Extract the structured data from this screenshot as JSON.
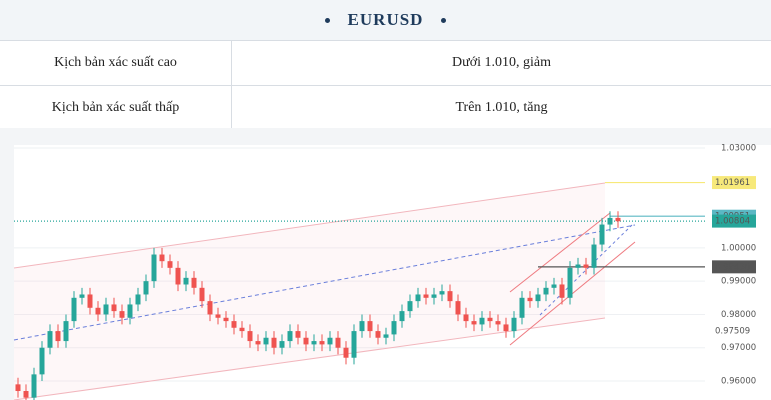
{
  "header": {
    "title": "EURUSD"
  },
  "table": {
    "rows": [
      [
        "Kịch bản xác suất cao",
        "Dưới 1.010, giảm"
      ],
      [
        "Kịch bản xác suất thấp",
        "Trên 1.010, tăng"
      ]
    ]
  },
  "chart_data": {
    "type": "candlestick",
    "up_color": "#26a69a",
    "down_color": "#ef5350",
    "open": [
      0.959,
      0.957,
      0.955,
      0.962,
      0.97,
      0.975,
      0.972,
      0.978,
      0.985,
      0.986,
      0.982,
      0.98,
      0.983,
      0.981,
      0.979,
      0.983,
      0.986,
      0.99,
      0.998,
      0.996,
      0.994,
      0.989,
      0.991,
      0.988,
      0.984,
      0.98,
      0.979,
      0.978,
      0.976,
      0.975,
      0.972,
      0.971,
      0.973,
      0.97,
      0.972,
      0.975,
      0.973,
      0.971,
      0.972,
      0.971,
      0.973,
      0.97,
      0.967,
      0.975,
      0.978,
      0.975,
      0.973,
      0.974,
      0.978,
      0.981,
      0.984,
      0.986,
      0.985,
      0.986,
      0.987,
      0.984,
      0.98,
      0.978,
      0.977,
      0.979,
      0.978,
      0.977,
      0.975,
      0.979,
      0.985,
      0.984,
      0.986,
      0.988,
      0.989,
      0.985,
      0.994,
      0.995,
      0.994,
      1.001,
      1.007,
      1.009
    ],
    "high": [
      0.961,
      0.959,
      0.964,
      0.972,
      0.977,
      0.977,
      0.98,
      0.987,
      0.988,
      0.988,
      0.984,
      0.985,
      0.985,
      0.983,
      0.985,
      0.988,
      0.992,
      1.0,
      1.0,
      0.998,
      0.996,
      0.993,
      0.993,
      0.99,
      0.986,
      0.982,
      0.981,
      0.98,
      0.978,
      0.977,
      0.974,
      0.975,
      0.975,
      0.974,
      0.977,
      0.977,
      0.975,
      0.974,
      0.974,
      0.975,
      0.975,
      0.972,
      0.977,
      0.98,
      0.98,
      0.977,
      0.976,
      0.98,
      0.983,
      0.986,
      0.988,
      0.988,
      0.988,
      0.989,
      0.989,
      0.986,
      0.982,
      0.98,
      0.981,
      0.981,
      0.98,
      0.979,
      0.981,
      0.987,
      0.987,
      0.988,
      0.99,
      0.991,
      0.991,
      0.996,
      0.997,
      0.997,
      1.003,
      1.009,
      1.011,
      1.011
    ],
    "low": [
      0.955,
      0.953,
      0.953,
      0.96,
      0.968,
      0.97,
      0.97,
      0.976,
      0.983,
      0.98,
      0.978,
      0.978,
      0.979,
      0.977,
      0.977,
      0.981,
      0.984,
      0.988,
      0.994,
      0.992,
      0.987,
      0.987,
      0.986,
      0.982,
      0.978,
      0.977,
      0.976,
      0.974,
      0.973,
      0.97,
      0.969,
      0.969,
      0.968,
      0.968,
      0.97,
      0.971,
      0.969,
      0.969,
      0.969,
      0.969,
      0.968,
      0.965,
      0.965,
      0.973,
      0.973,
      0.971,
      0.971,
      0.972,
      0.976,
      0.979,
      0.982,
      0.983,
      0.983,
      0.984,
      0.982,
      0.978,
      0.976,
      0.975,
      0.975,
      0.976,
      0.975,
      0.973,
      0.973,
      0.977,
      0.982,
      0.982,
      0.984,
      0.986,
      0.983,
      0.983,
      0.992,
      0.992,
      0.992,
      0.999,
      1.005,
      1.006
    ],
    "close": [
      0.957,
      0.955,
      0.962,
      0.97,
      0.975,
      0.972,
      0.978,
      0.985,
      0.986,
      0.982,
      0.98,
      0.983,
      0.981,
      0.979,
      0.983,
      0.986,
      0.99,
      0.998,
      0.996,
      0.994,
      0.989,
      0.991,
      0.988,
      0.984,
      0.98,
      0.979,
      0.978,
      0.976,
      0.975,
      0.972,
      0.971,
      0.973,
      0.97,
      0.972,
      0.975,
      0.973,
      0.971,
      0.972,
      0.971,
      0.973,
      0.97,
      0.967,
      0.975,
      0.978,
      0.975,
      0.973,
      0.974,
      0.978,
      0.981,
      0.984,
      0.986,
      0.985,
      0.986,
      0.987,
      0.984,
      0.98,
      0.978,
      0.977,
      0.979,
      0.978,
      0.977,
      0.975,
      0.979,
      0.985,
      0.984,
      0.986,
      0.988,
      0.989,
      0.985,
      0.994,
      0.995,
      0.994,
      1.001,
      1.007,
      1.009,
      1.008
    ],
    "ylim": [
      0.9543,
      1.0309
    ],
    "yticks": [
      {
        "value": 0.96,
        "label": "0.96000"
      },
      {
        "value": 0.97,
        "label": "0.97000"
      },
      {
        "value": 0.98,
        "label": "0.98000"
      },
      {
        "value": 0.99,
        "label": "0.99000"
      },
      {
        "value": 1.0,
        "label": "1.00000"
      },
      {
        "value": 1.03,
        "label": "1.03000"
      }
    ],
    "grid": true,
    "price_lines": [
      {
        "value": 1.01961,
        "label": "1.01961",
        "color": "#f7e97a",
        "boxed": true
      },
      {
        "value": 1.00951,
        "label": "1.00951",
        "color": "#5bb8c4",
        "boxed": true
      },
      {
        "value": 1.00804,
        "label": "1.00804",
        "color": "#26a69a",
        "boxed": true
      },
      {
        "value": 0.9943,
        "label": "0.99430",
        "color": "#555555",
        "boxed": true
      },
      {
        "value": 0.97509,
        "label": "0.97509",
        "color": "#555555",
        "boxed": false
      }
    ]
  }
}
